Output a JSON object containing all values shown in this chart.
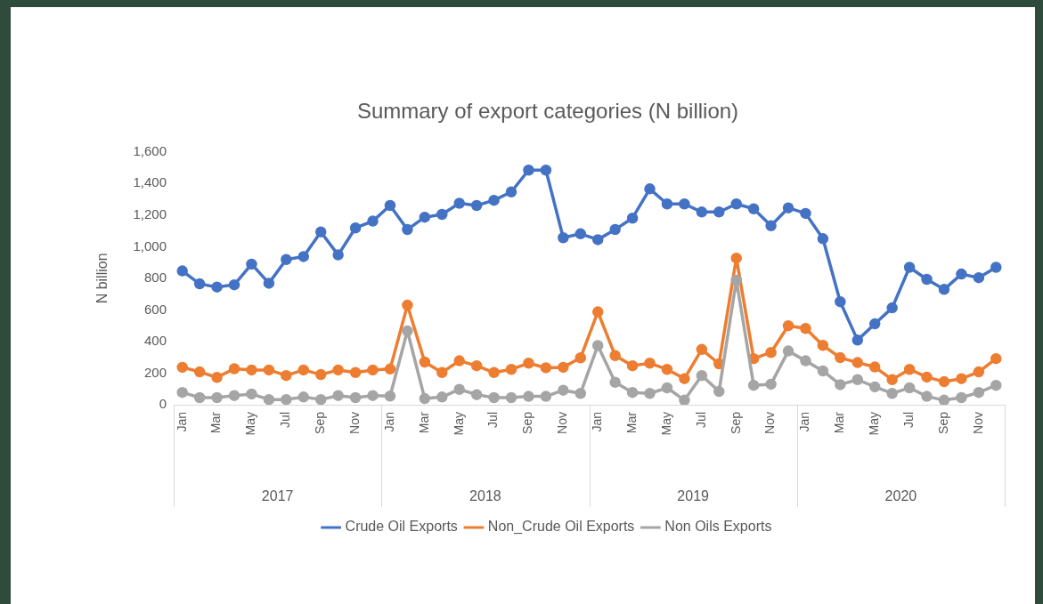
{
  "chart_data": {
    "type": "line",
    "title": "Summary of export categories (N billion)",
    "ylabel": "N billion",
    "categories": [
      "Jan",
      null,
      "Mar",
      null,
      "May",
      null,
      "Jul",
      null,
      "Sep",
      null,
      "Nov",
      null,
      "Jan",
      null,
      "Mar",
      null,
      "May",
      null,
      "Jul",
      null,
      "Sep",
      null,
      "Nov",
      null,
      "Jan",
      null,
      "Mar",
      null,
      "May",
      null,
      "Jul",
      null,
      "Sep",
      null,
      "Nov",
      null,
      "Jan",
      null,
      "Mar",
      null,
      "May",
      null,
      "Jul",
      null,
      "Sep",
      null,
      "Nov",
      null
    ],
    "series": [
      {
        "name": "Crude Oil Exports",
        "color": "#4472c4",
        "values": [
          847,
          765,
          745,
          759,
          890,
          769,
          919,
          938,
          1094,
          948,
          1119,
          1162,
          1261,
          1109,
          1187,
          1205,
          1275,
          1261,
          1294,
          1347,
          1485,
          1485,
          1057,
          1082,
          1045,
          1109,
          1181,
          1366,
          1271,
          1271,
          1220,
          1220,
          1271,
          1240,
          1133,
          1246,
          1211,
          1051,
          652,
          409,
          512,
          613,
          870,
          794,
          730,
          827,
          804,
          870
        ]
      },
      {
        "name": "Non_Crude Oil Exports",
        "color": "#ed7d31",
        "values": [
          237,
          208,
          173,
          228,
          220,
          220,
          185,
          220,
          191,
          220,
          204,
          220,
          226,
          630,
          270,
          204,
          278,
          247,
          204,
          224,
          263,
          234,
          237,
          297,
          588,
          311,
          247,
          263,
          224,
          165,
          350,
          259,
          928,
          292,
          331,
          500,
          483,
          376,
          298,
          267,
          239,
          159,
          224,
          175,
          146,
          165,
          208,
          292
        ]
      },
      {
        "name": "Non Oils Exports",
        "color": "#a5a5a5",
        "values": [
          78,
          45,
          45,
          58,
          68,
          33,
          33,
          49,
          33,
          58,
          45,
          58,
          55,
          467,
          39,
          49,
          97,
          64,
          45,
          45,
          53,
          53,
          92,
          72,
          375,
          142,
          78,
          72,
          107,
          29,
          185,
          84,
          788,
          123,
          130,
          340,
          278,
          214,
          127,
          159,
          113,
          72,
          107,
          53,
          29,
          45,
          78,
          123
        ]
      }
    ],
    "ylim": [
      0,
      1600
    ],
    "yticks": [
      0,
      200,
      400,
      600,
      800,
      {
        "value": 1000,
        "label": "1,000"
      },
      {
        "value": 1200,
        "label": "1,200"
      },
      {
        "value": 1400,
        "label": "1,400"
      },
      {
        "value": 1600,
        "label": "1,600"
      }
    ],
    "annotations": [
      "2017",
      "2018",
      "2019",
      "2020"
    ],
    "grid": false,
    "legend": "bottom",
    "marker": "circle",
    "line_style": "solid"
  }
}
